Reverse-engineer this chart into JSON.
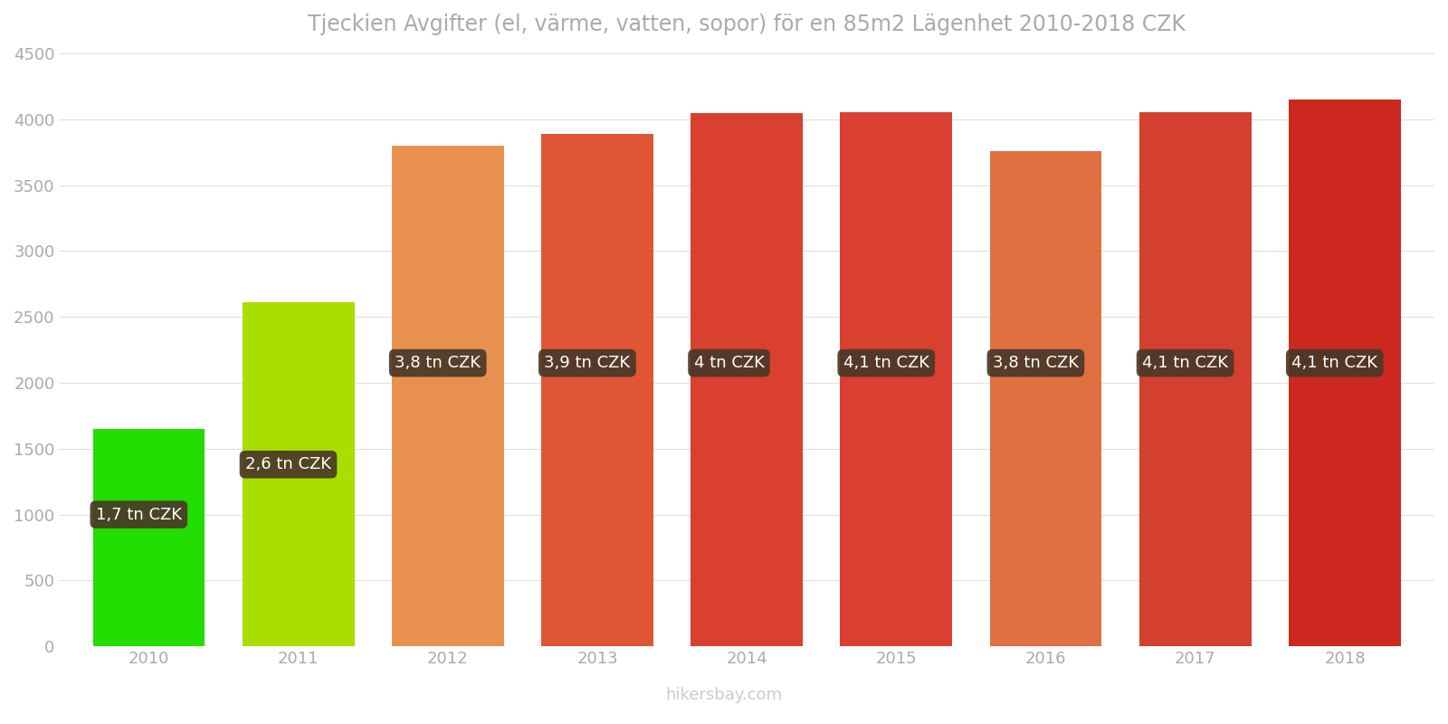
{
  "title": "Tjeckien Avgifter (el, värme, vatten, sopor) för en 85m2 Lägenhet 2010-2018 CZK",
  "years": [
    2010,
    2011,
    2012,
    2013,
    2014,
    2015,
    2016,
    2017,
    2018
  ],
  "values": [
    1650,
    2610,
    3800,
    3890,
    4050,
    4055,
    3760,
    4055,
    4150
  ],
  "bar_colors": [
    "#22dd00",
    "#aadd00",
    "#e89050",
    "#e05535",
    "#d94030",
    "#d94030",
    "#e07040",
    "#d44030",
    "#cc2820"
  ],
  "labels": [
    "1,7 tn CZK",
    "2,6 tn CZK",
    "3,8 tn CZK",
    "3,9 tn CZK",
    "4 tn CZK",
    "4,1 tn CZK",
    "3,8 tn CZK",
    "4,1 tn CZK",
    "4,1 tn CZK"
  ],
  "label_y_positions": [
    1000,
    1380,
    2150,
    2150,
    2150,
    2150,
    2150,
    2150,
    2150
  ],
  "ylim": [
    0,
    4500
  ],
  "yticks": [
    0,
    500,
    1000,
    1500,
    2000,
    2500,
    3000,
    3500,
    4000,
    4500
  ],
  "label_box_colors": [
    "#4a3828",
    "#4a3828",
    "#4a3828",
    "#4a3828",
    "#4a3828",
    "#4a3828",
    "#4a3828",
    "#4a3828",
    "#4a3828"
  ],
  "label_text_color": "#ffffff",
  "watermark": "hikersbay.com",
  "background_color": "#ffffff",
  "grid_color": "#e0e0e0",
  "bar_width": 0.75
}
